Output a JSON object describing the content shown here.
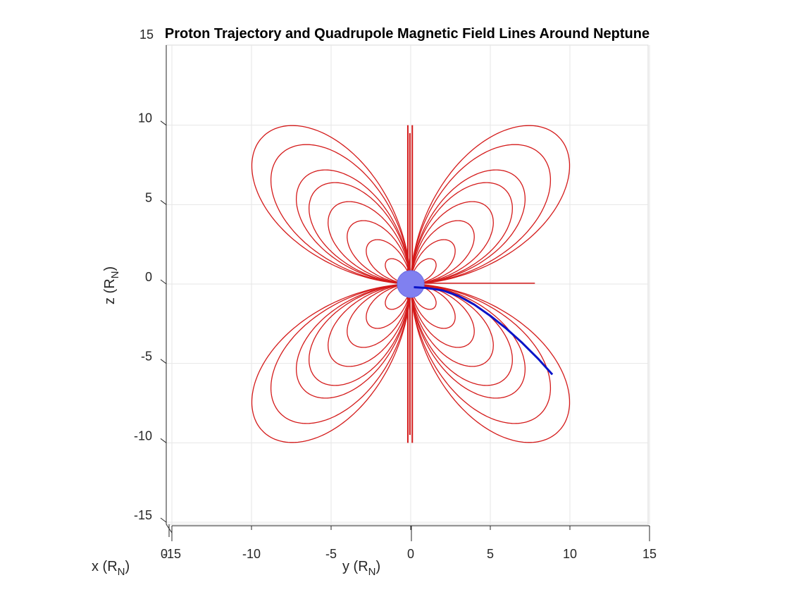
{
  "chart_data": {
    "type": "line",
    "title": "Proton Trajectory and Quadrupole Magnetic Field Lines Around Neptune",
    "xlabel": "y (R",
    "xlabel_sub": "N",
    "xlabel_tail": ")",
    "ylabel": "z (R",
    "ylabel_sub": "N",
    "ylabel_tail": ")",
    "depth_label": "x (R",
    "depth_label_sub": "N",
    "depth_label_tail": ")",
    "depth_tick_label": "0",
    "stray_tick_label": "15",
    "xlim": [
      -15,
      15
    ],
    "ylim": [
      -15,
      15
    ],
    "x_ticks": [
      -15,
      -10,
      -5,
      0,
      5,
      10,
      15
    ],
    "x_tick_labels": [
      "-15",
      "-10",
      "-5",
      "0",
      "5",
      "10",
      "15"
    ],
    "y_ticks": [
      -15,
      -10,
      -5,
      0,
      5,
      10
    ],
    "y_tick_labels": [
      "-15",
      "-10",
      "-5",
      "0",
      "5",
      "10"
    ],
    "grid": true,
    "field_line_color": "#d41a1a",
    "trajectory_color": "#0a14c8",
    "planet_color": "#8080f0",
    "field_line_L": [
      2.0,
      3.5,
      5.0,
      6.5,
      8.0,
      9.0,
      11.0,
      12.5
    ],
    "planet": {
      "y": 0,
      "z": 0,
      "r": 0.85
    },
    "series": [
      {
        "x": [
          0.2,
          1.0,
          2.0,
          3.0,
          4.0,
          5.0,
          6.0,
          7.0,
          8.0,
          8.9
        ],
        "y": [
          -0.2,
          -0.25,
          -0.4,
          -0.75,
          -1.3,
          -2.0,
          -2.8,
          -3.7,
          -4.7,
          -5.7
        ]
      }
    ]
  }
}
